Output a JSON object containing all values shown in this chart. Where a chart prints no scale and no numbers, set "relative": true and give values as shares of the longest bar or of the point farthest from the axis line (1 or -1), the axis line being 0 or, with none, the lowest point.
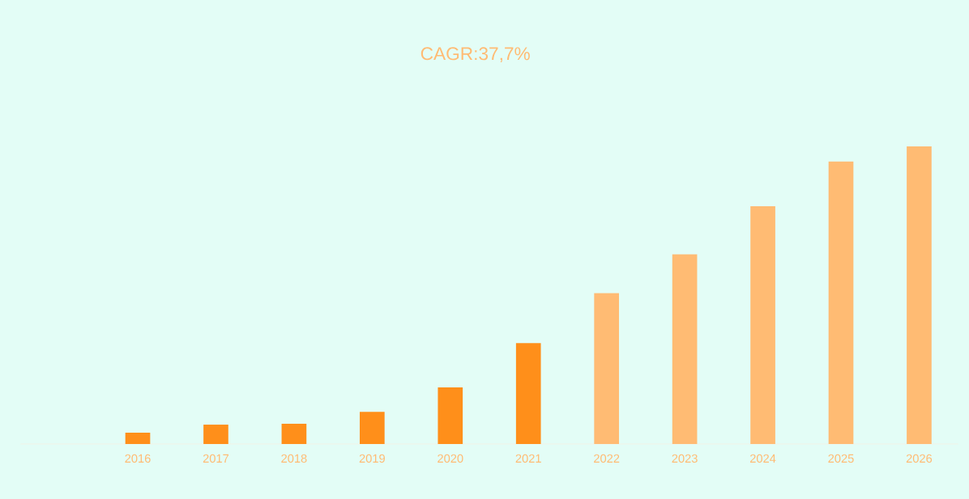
{
  "chart_data": {
    "type": "bar",
    "title": "CAGR:37,7%",
    "categories": [
      null,
      "2016",
      "2017",
      "2018",
      "2019",
      "2020",
      "2021",
      "2022",
      "2023",
      "2024",
      "2025",
      "2026"
    ],
    "values": [
      null,
      0.038,
      0.065,
      0.068,
      0.108,
      0.19,
      0.339,
      0.507,
      0.637,
      0.799,
      0.949,
      1
    ],
    "colors": [
      null,
      "#ff8f1a",
      "#ff8f1a",
      "#ff8f1a",
      "#ff8f1a",
      "#ff8f1a",
      "#ff8f1a",
      "#ffbb73",
      "#ffbb73",
      "#ffbb73",
      "#ffbb73",
      "#ffbb73"
    ],
    "relative": true
  }
}
